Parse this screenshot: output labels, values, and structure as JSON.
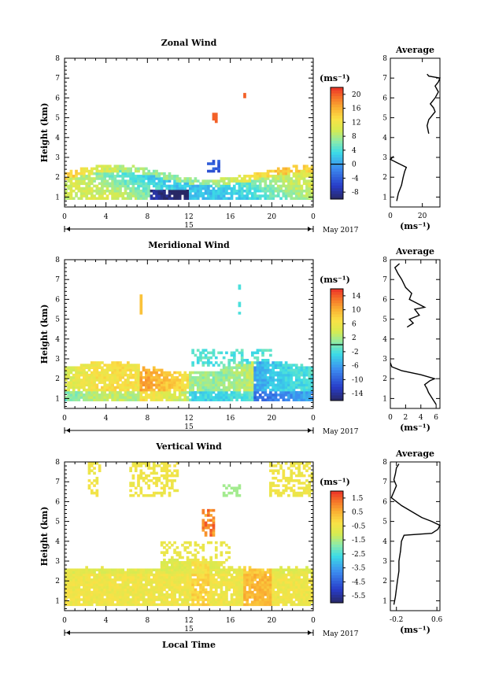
{
  "chart_data": [
    {
      "type": "heatmap",
      "title": "Zonal Wind",
      "ylabel": "Height (km)",
      "xlim": [
        0,
        24
      ],
      "ylim": [
        0.5,
        8
      ],
      "xticks": [
        "0",
        "4",
        "8",
        "12",
        "16",
        "20",
        "0"
      ],
      "yticks": [
        "1",
        "2",
        "3",
        "4",
        "5",
        "6",
        "7",
        "8"
      ],
      "date_label": "15",
      "date_suffix": "May 2017",
      "colorbar": {
        "unit": "(ms⁻¹)",
        "ticks": [
          "20",
          "16",
          "12",
          "8",
          "4",
          "0",
          "-4",
          "-8"
        ],
        "range": [
          -10,
          22
        ],
        "tick_values": [
          20,
          16,
          12,
          8,
          4,
          0,
          -4,
          -8
        ],
        "zero_line": 0
      },
      "profile": {
        "title": "Average",
        "xlabel": "(ms⁻¹)",
        "xticks": [
          "0",
          "20"
        ],
        "xtick_values": [
          0,
          20
        ],
        "xlim": [
          0,
          31
        ],
        "points": [
          [
            4,
            0.8
          ],
          [
            5,
            1.2
          ],
          [
            7,
            1.6
          ],
          [
            8,
            2.0
          ],
          [
            9,
            2.3
          ],
          [
            10,
            2.5
          ],
          [
            5,
            2.7
          ],
          [
            0,
            2.9
          ],
          [
            2,
            3.05
          ],
          [
            24,
            4.2
          ],
          [
            23,
            4.6
          ],
          [
            24,
            4.9
          ],
          [
            26,
            5.1
          ],
          [
            28,
            5.3
          ],
          [
            27,
            5.5
          ],
          [
            25,
            5.7
          ],
          [
            28,
            6.0
          ],
          [
            30,
            6.3
          ],
          [
            28,
            6.6
          ],
          [
            30,
            6.8
          ],
          [
            31,
            7.0
          ],
          [
            24,
            7.1
          ],
          [
            23,
            7.2
          ]
        ]
      }
    },
    {
      "type": "heatmap",
      "title": "Meridional Wind",
      "ylabel": "Height (km)",
      "xlim": [
        0,
        24
      ],
      "ylim": [
        0.5,
        8
      ],
      "xticks": [
        "0",
        "4",
        "8",
        "12",
        "16",
        "20",
        "0"
      ],
      "yticks": [
        "1",
        "2",
        "3",
        "4",
        "5",
        "6",
        "7",
        "8"
      ],
      "date_label": "15",
      "date_suffix": "May 2017",
      "colorbar": {
        "unit": "(ms⁻¹)",
        "ticks": [
          "14",
          "10",
          "6",
          "2",
          "-2",
          "-6",
          "-10",
          "-14"
        ],
        "range": [
          -16,
          16
        ],
        "tick_values": [
          14,
          10,
          6,
          2,
          -2,
          -6,
          -10,
          -14
        ],
        "zero_line": 0
      },
      "profile": {
        "title": "Average",
        "xlabel": "(ms⁻¹)",
        "xticks": [
          "0",
          "2",
          "4",
          "6"
        ],
        "xtick_values": [
          0,
          2,
          4,
          6
        ],
        "xlim": [
          0,
          6.5
        ],
        "points": [
          [
            6,
            0.7
          ],
          [
            5.5,
            1.0
          ],
          [
            5.0,
            1.3
          ],
          [
            4.8,
            1.5
          ],
          [
            4.5,
            1.7
          ],
          [
            5.2,
            1.9
          ],
          [
            5.8,
            2.0
          ],
          [
            4.0,
            2.2
          ],
          [
            1.5,
            2.4
          ],
          [
            0.2,
            2.6
          ],
          [
            0,
            2.8
          ],
          [
            2.2,
            4.6
          ],
          [
            3.0,
            4.8
          ],
          [
            2.5,
            5.0
          ],
          [
            3.8,
            5.2
          ],
          [
            3.2,
            5.5
          ],
          [
            4.5,
            5.6
          ],
          [
            3.5,
            5.8
          ],
          [
            2.5,
            6.0
          ],
          [
            2.8,
            6.3
          ],
          [
            2.0,
            6.6
          ],
          [
            1.5,
            7.0
          ],
          [
            1.0,
            7.3
          ],
          [
            0.6,
            7.6
          ],
          [
            1.2,
            7.8
          ]
        ]
      }
    },
    {
      "type": "heatmap",
      "title": "Vertical Wind",
      "xlabel": "Local Time",
      "ylabel": "Height (km)",
      "xlim": [
        0,
        24
      ],
      "ylim": [
        0.5,
        8
      ],
      "xticks": [
        "0",
        "4",
        "8",
        "12",
        "16",
        "20",
        "0"
      ],
      "yticks": [
        "1",
        "2",
        "3",
        "4",
        "5",
        "6",
        "7",
        "8"
      ],
      "date_label": "15",
      "date_suffix": "May 2017",
      "colorbar": {
        "unit": "(ms⁻¹)",
        "ticks": [
          "1.5",
          "0.5",
          "-0.5",
          "-1.5",
          "-2.5",
          "-3.5",
          "-4.5",
          "-5.5"
        ],
        "range": [
          -6,
          2
        ],
        "tick_values": [
          1.5,
          0.5,
          -0.5,
          -1.5,
          -2.5,
          -3.5,
          -4.5,
          -5.5
        ],
        "zero_line": null
      },
      "profile": {
        "title": "Average",
        "xlabel": "(ms⁻¹)",
        "xticks": [
          "-0.2",
          "0.6"
        ],
        "xtick_values": [
          -0.2,
          0.6
        ],
        "xlim": [
          -0.32,
          0.66
        ],
        "points": [
          [
            -0.25,
            0.8
          ],
          [
            -0.22,
            1.2
          ],
          [
            -0.2,
            1.6
          ],
          [
            -0.18,
            2.0
          ],
          [
            -0.15,
            2.5
          ],
          [
            -0.15,
            3.0
          ],
          [
            -0.12,
            3.5
          ],
          [
            -0.1,
            4.0
          ],
          [
            -0.05,
            4.3
          ],
          [
            0.5,
            4.4
          ],
          [
            0.62,
            4.6
          ],
          [
            0.66,
            4.8
          ],
          [
            0.5,
            5.0
          ],
          [
            0.3,
            5.2
          ],
          [
            0.1,
            5.5
          ],
          [
            -0.1,
            5.8
          ],
          [
            -0.2,
            6.0
          ],
          [
            -0.3,
            6.2
          ],
          [
            -0.25,
            6.5
          ],
          [
            -0.2,
            6.8
          ],
          [
            -0.25,
            7.1
          ],
          [
            -0.22,
            7.4
          ],
          [
            -0.2,
            7.7
          ],
          [
            -0.15,
            7.9
          ]
        ]
      }
    }
  ]
}
